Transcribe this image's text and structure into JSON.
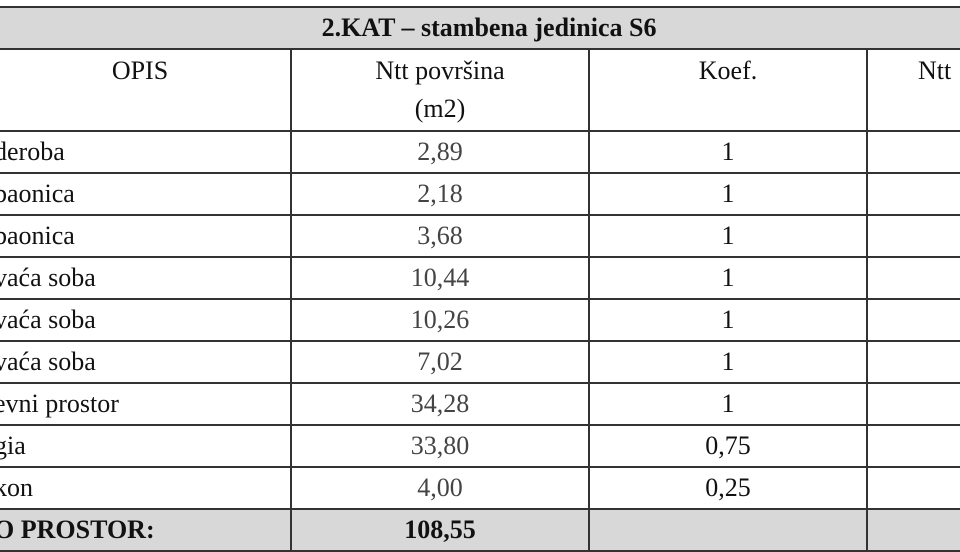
{
  "title": "2.KAT – stambena jedinica S6",
  "headers": {
    "opis": "OPIS",
    "area_line1": "Ntt površina",
    "area_line2": "(m2)",
    "koef": "Koef.",
    "ntt": "Ntt"
  },
  "rows": [
    {
      "opis": "deroba",
      "area": "2,89",
      "koef": "1"
    },
    {
      "opis": "baonica",
      "area": "2,18",
      "koef": "1"
    },
    {
      "opis": "baonica",
      "area": "3,68",
      "koef": "1"
    },
    {
      "opis": "vaća soba",
      "area": "10,44",
      "koef": "1"
    },
    {
      "opis": "vaća soba",
      "area": "10,26",
      "koef": "1"
    },
    {
      "opis": "vaća soba",
      "area": "7,02",
      "koef": "1"
    },
    {
      "opis": "evni prostor",
      "area": "34,28",
      "koef": "1"
    },
    {
      "opis": "gia",
      "area": "33,80",
      "koef": "0,75"
    },
    {
      "opis": "kon",
      "area": "4,00",
      "koef": "0,25"
    }
  ],
  "total": {
    "label": "O PROSTOR:",
    "value": "108,55"
  }
}
